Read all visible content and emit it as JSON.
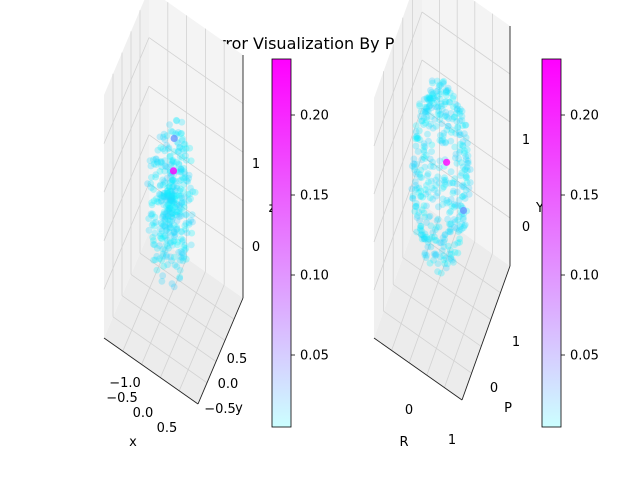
{
  "chart_data": {
    "type": "scatter",
    "title": "Error Visualization By Position",
    "colormap": "cool",
    "colors": {
      "low": "#00ffff",
      "high": "#ff00ff",
      "pane": "#f2f2f2",
      "grid": "#d0d0d0"
    },
    "panels": [
      {
        "xlabel": "x",
        "ylabel": "y",
        "zlabel": "z",
        "x_ticks": [
          "−1.0",
          "−0.5",
          "0.0",
          "0.5"
        ],
        "y_ticks": [
          "0.5",
          "0.0",
          "−0.5"
        ],
        "z_ticks": [
          "1",
          "0"
        ],
        "xlim": [
          -1.1,
          0.8
        ],
        "ylim": [
          -0.6,
          0.7
        ],
        "zlim": [
          -0.6,
          1.3
        ],
        "cloud": {
          "center": [
            -0.2,
            0.05,
            0.3
          ],
          "radii": [
            0.45,
            0.35,
            0.65
          ],
          "count": 380
        },
        "highlight_points": [
          {
            "x": -0.15,
            "y": 0.05,
            "z": 0.55,
            "error": 0.235
          },
          {
            "x": -0.1,
            "y": 0.0,
            "z": 0.85,
            "error": 0.1
          }
        ],
        "colorbar": {
          "min": 0.005,
          "max": 0.235,
          "ticks": [
            "0.20",
            "0.15",
            "0.10",
            "0.05"
          ],
          "tick_values": [
            0.2,
            0.15,
            0.1,
            0.05
          ]
        }
      },
      {
        "xlabel": "R",
        "ylabel": "P",
        "zlabel": "Y",
        "x_ticks": [
          "0",
          "1"
        ],
        "y_ticks": [
          "1",
          "0"
        ],
        "z_ticks": [
          "1",
          "0"
        ],
        "xlim": [
          -1.4,
          1.5
        ],
        "ylim": [
          -0.7,
          1.5
        ],
        "zlim": [
          -0.8,
          1.3
        ],
        "cloud": {
          "shape": "shell",
          "center": [
            0.0,
            0.4,
            0.3
          ],
          "radii": [
            0.9,
            0.6,
            0.8
          ],
          "count": 420
        },
        "highlight_points": [
          {
            "x": 0.2,
            "y": 0.4,
            "z": 0.45,
            "error": 0.235
          },
          {
            "x": 0.4,
            "y": 0.9,
            "z": -0.2,
            "error": 0.1
          }
        ],
        "colorbar": {
          "min": 0.005,
          "max": 0.235,
          "ticks": [
            "0.20",
            "0.15",
            "0.10",
            "0.05"
          ],
          "tick_values": [
            0.2,
            0.15,
            0.1,
            0.05
          ]
        }
      }
    ]
  }
}
